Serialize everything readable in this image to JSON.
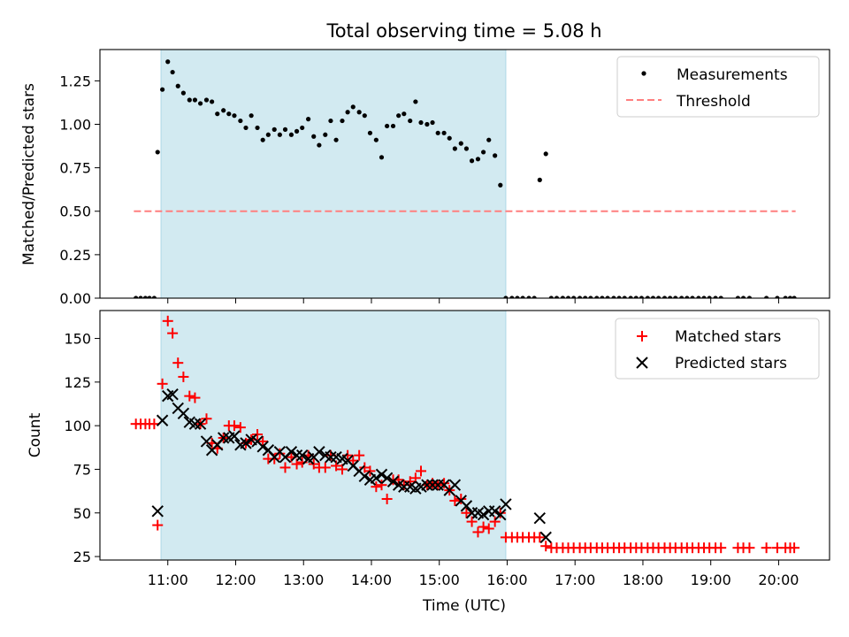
{
  "figure": {
    "title": "Total observing time = 5.08 h"
  },
  "chart_data": [
    {
      "type": "scatter",
      "panel": "top",
      "ylabel": "Matched/Predicted stars",
      "xlabel": "",
      "x_unit": "hours UTC",
      "xlim": [
        10.0,
        20.75
      ],
      "ylim": [
        0.0,
        1.43
      ],
      "yticks": [
        0.0,
        0.25,
        0.5,
        0.75,
        1.0,
        1.25
      ],
      "ytick_labels": [
        "0.00",
        "0.25",
        "0.50",
        "0.75",
        "1.00",
        "1.25"
      ],
      "shaded_interval": [
        10.9,
        15.98
      ],
      "shade_color": "#add8e6",
      "legend_position": "top-right",
      "series": [
        {
          "name": "Measurements",
          "kind": "scatter",
          "marker": "dot",
          "color": "#000000",
          "x": [
            10.53,
            10.6,
            10.67,
            10.73,
            10.8,
            10.85,
            10.92,
            11.0,
            11.07,
            11.15,
            11.23,
            11.32,
            11.4,
            11.48,
            11.57,
            11.65,
            11.73,
            11.82,
            11.9,
            11.98,
            12.07,
            12.15,
            12.23,
            12.32,
            12.4,
            12.48,
            12.57,
            12.65,
            12.73,
            12.82,
            12.9,
            12.98,
            13.07,
            13.15,
            13.23,
            13.32,
            13.4,
            13.48,
            13.57,
            13.65,
            13.73,
            13.82,
            13.9,
            13.98,
            14.07,
            14.15,
            14.23,
            14.32,
            14.4,
            14.48,
            14.57,
            14.65,
            14.73,
            14.82,
            14.9,
            14.98,
            15.07,
            15.15,
            15.23,
            15.32,
            15.4,
            15.48,
            15.57,
            15.65,
            15.73,
            15.82,
            15.9,
            15.98,
            16.07,
            16.15,
            16.23,
            16.32,
            16.4,
            16.48,
            16.57,
            16.65,
            16.73,
            16.82,
            16.9,
            16.98,
            17.07,
            17.15,
            17.23,
            17.32,
            17.4,
            17.48,
            17.57,
            17.65,
            17.73,
            17.82,
            17.9,
            17.98,
            18.07,
            18.15,
            18.23,
            18.32,
            18.4,
            18.48,
            18.57,
            18.65,
            18.73,
            18.82,
            18.9,
            18.98,
            19.07,
            19.15,
            19.4,
            19.48,
            19.57,
            19.82,
            19.98,
            20.1,
            20.17,
            20.23
          ],
          "y": [
            0,
            0,
            0,
            0,
            0,
            0.84,
            1.2,
            1.36,
            1.3,
            1.22,
            1.18,
            1.14,
            1.14,
            1.12,
            1.14,
            1.13,
            1.06,
            1.08,
            1.06,
            1.05,
            1.02,
            0.98,
            1.05,
            0.98,
            0.91,
            0.94,
            0.97,
            0.94,
            0.97,
            0.94,
            0.96,
            0.98,
            1.03,
            0.93,
            0.88,
            0.94,
            1.02,
            0.91,
            1.02,
            1.07,
            1.1,
            1.07,
            1.05,
            0.95,
            0.91,
            0.81,
            0.99,
            0.99,
            1.05,
            1.06,
            1.02,
            1.13,
            1.01,
            1.0,
            1.01,
            0.95,
            0.95,
            0.92,
            0.86,
            0.89,
            0.86,
            0.79,
            0.8,
            0.84,
            0.91,
            0.82,
            0.65,
            0,
            0,
            0,
            0,
            0,
            0,
            0.68,
            0.83,
            0,
            0,
            0,
            0,
            0,
            0,
            0,
            0,
            0,
            0,
            0,
            0,
            0,
            0,
            0,
            0,
            0,
            0,
            0,
            0,
            0,
            0,
            0,
            0,
            0,
            0,
            0,
            0,
            0,
            0,
            0,
            0,
            0,
            0,
            0,
            0,
            0,
            0,
            0
          ]
        },
        {
          "name": "Threshold",
          "kind": "line",
          "style": "dashed",
          "color": "#ff7f7f",
          "x": [
            10.5,
            20.25
          ],
          "y": [
            0.5,
            0.5
          ]
        }
      ]
    },
    {
      "type": "scatter",
      "panel": "bottom",
      "ylabel": "Count",
      "xlabel": "Time (UTC)",
      "x_unit": "hours UTC",
      "xlim": [
        10.0,
        20.75
      ],
      "ylim": [
        23.0,
        166.0
      ],
      "yticks": [
        25,
        50,
        75,
        100,
        125,
        150
      ],
      "ytick_labels": [
        "25",
        "50",
        "75",
        "100",
        "125",
        "150"
      ],
      "xticks": [
        11,
        12,
        13,
        14,
        15,
        16,
        17,
        18,
        19,
        20
      ],
      "xtick_labels": [
        "11:00",
        "12:00",
        "13:00",
        "14:00",
        "15:00",
        "16:00",
        "17:00",
        "18:00",
        "19:00",
        "20:00"
      ],
      "shaded_interval": [
        10.9,
        15.98
      ],
      "shade_color": "#add8e6",
      "legend_position": "top-right",
      "series": [
        {
          "name": "Matched stars",
          "kind": "scatter",
          "marker": "plus",
          "color": "#ff0000",
          "x": [
            10.53,
            10.6,
            10.67,
            10.73,
            10.8,
            10.85,
            10.92,
            11.0,
            11.07,
            11.15,
            11.23,
            11.32,
            11.4,
            11.48,
            11.57,
            11.65,
            11.73,
            11.82,
            11.9,
            11.98,
            12.07,
            12.15,
            12.23,
            12.32,
            12.4,
            12.48,
            12.57,
            12.65,
            12.73,
            12.82,
            12.9,
            12.98,
            13.07,
            13.15,
            13.23,
            13.32,
            13.4,
            13.48,
            13.57,
            13.65,
            13.73,
            13.82,
            13.9,
            13.98,
            14.07,
            14.15,
            14.23,
            14.32,
            14.4,
            14.48,
            14.57,
            14.65,
            14.73,
            14.82,
            14.9,
            14.98,
            15.07,
            15.15,
            15.23,
            15.32,
            15.4,
            15.48,
            15.57,
            15.65,
            15.73,
            15.82,
            15.9,
            15.98,
            16.07,
            16.15,
            16.23,
            16.32,
            16.4,
            16.48,
            16.57,
            16.65,
            16.73,
            16.82,
            16.9,
            16.98,
            17.07,
            17.15,
            17.23,
            17.32,
            17.4,
            17.48,
            17.57,
            17.65,
            17.73,
            17.82,
            17.9,
            17.98,
            18.07,
            18.15,
            18.23,
            18.32,
            18.4,
            18.48,
            18.57,
            18.65,
            18.73,
            18.82,
            18.9,
            18.98,
            19.07,
            19.15,
            19.4,
            19.48,
            19.57,
            19.82,
            19.98,
            20.1,
            20.17,
            20.23
          ],
          "y": [
            101,
            101,
            101,
            101,
            101,
            43,
            124,
            160,
            153,
            136,
            128,
            117,
            116,
            101,
            104,
            90,
            87,
            93,
            100,
            100,
            99,
            90,
            92,
            95,
            91,
            81,
            81,
            84,
            76,
            82,
            78,
            79,
            83,
            78,
            76,
            76,
            83,
            77,
            75,
            83,
            80,
            83,
            76,
            74,
            65,
            66,
            58,
            69,
            69,
            66,
            68,
            70,
            74,
            66,
            67,
            66,
            67,
            63,
            57,
            58,
            50,
            45,
            39,
            42,
            41,
            45,
            50,
            36,
            36,
            36,
            36,
            36,
            36,
            36,
            31,
            30,
            30,
            30,
            30,
            30,
            30,
            30,
            30,
            30,
            30,
            30,
            30,
            30,
            30,
            30,
            30,
            30,
            30,
            30,
            30,
            30,
            30,
            30,
            30,
            30,
            30,
            30,
            30,
            30,
            30,
            30,
            30,
            30,
            30,
            30,
            30,
            30,
            30,
            30
          ]
        },
        {
          "name": "Predicted stars",
          "kind": "scatter",
          "marker": "x",
          "color": "#000000",
          "x": [
            10.85,
            10.92,
            11.0,
            11.07,
            11.15,
            11.23,
            11.32,
            11.4,
            11.48,
            11.57,
            11.65,
            11.73,
            11.82,
            11.9,
            11.98,
            12.07,
            12.15,
            12.23,
            12.32,
            12.4,
            12.48,
            12.57,
            12.65,
            12.73,
            12.82,
            12.9,
            12.98,
            13.07,
            13.15,
            13.23,
            13.32,
            13.4,
            13.48,
            13.57,
            13.65,
            13.73,
            13.82,
            13.9,
            13.98,
            14.07,
            14.15,
            14.23,
            14.32,
            14.4,
            14.48,
            14.57,
            14.65,
            14.73,
            14.82,
            14.9,
            14.98,
            15.07,
            15.15,
            15.23,
            15.32,
            15.4,
            15.48,
            15.57,
            15.65,
            15.73,
            15.82,
            15.9,
            15.98,
            16.48,
            16.57
          ],
          "y": [
            51,
            103,
            117,
            118,
            110,
            107,
            102,
            101,
            101,
            91,
            86,
            89,
            93,
            93,
            94,
            89,
            90,
            92,
            91,
            88,
            86,
            82,
            85,
            82,
            85,
            83,
            83,
            81,
            82,
            85,
            83,
            82,
            82,
            81,
            80,
            77,
            74,
            71,
            69,
            70,
            72,
            70,
            68,
            66,
            65,
            65,
            64,
            65,
            66,
            66,
            66,
            66,
            63,
            66,
            57,
            54,
            50,
            50,
            49,
            51,
            51,
            49,
            55,
            47,
            36
          ]
        }
      ]
    }
  ]
}
